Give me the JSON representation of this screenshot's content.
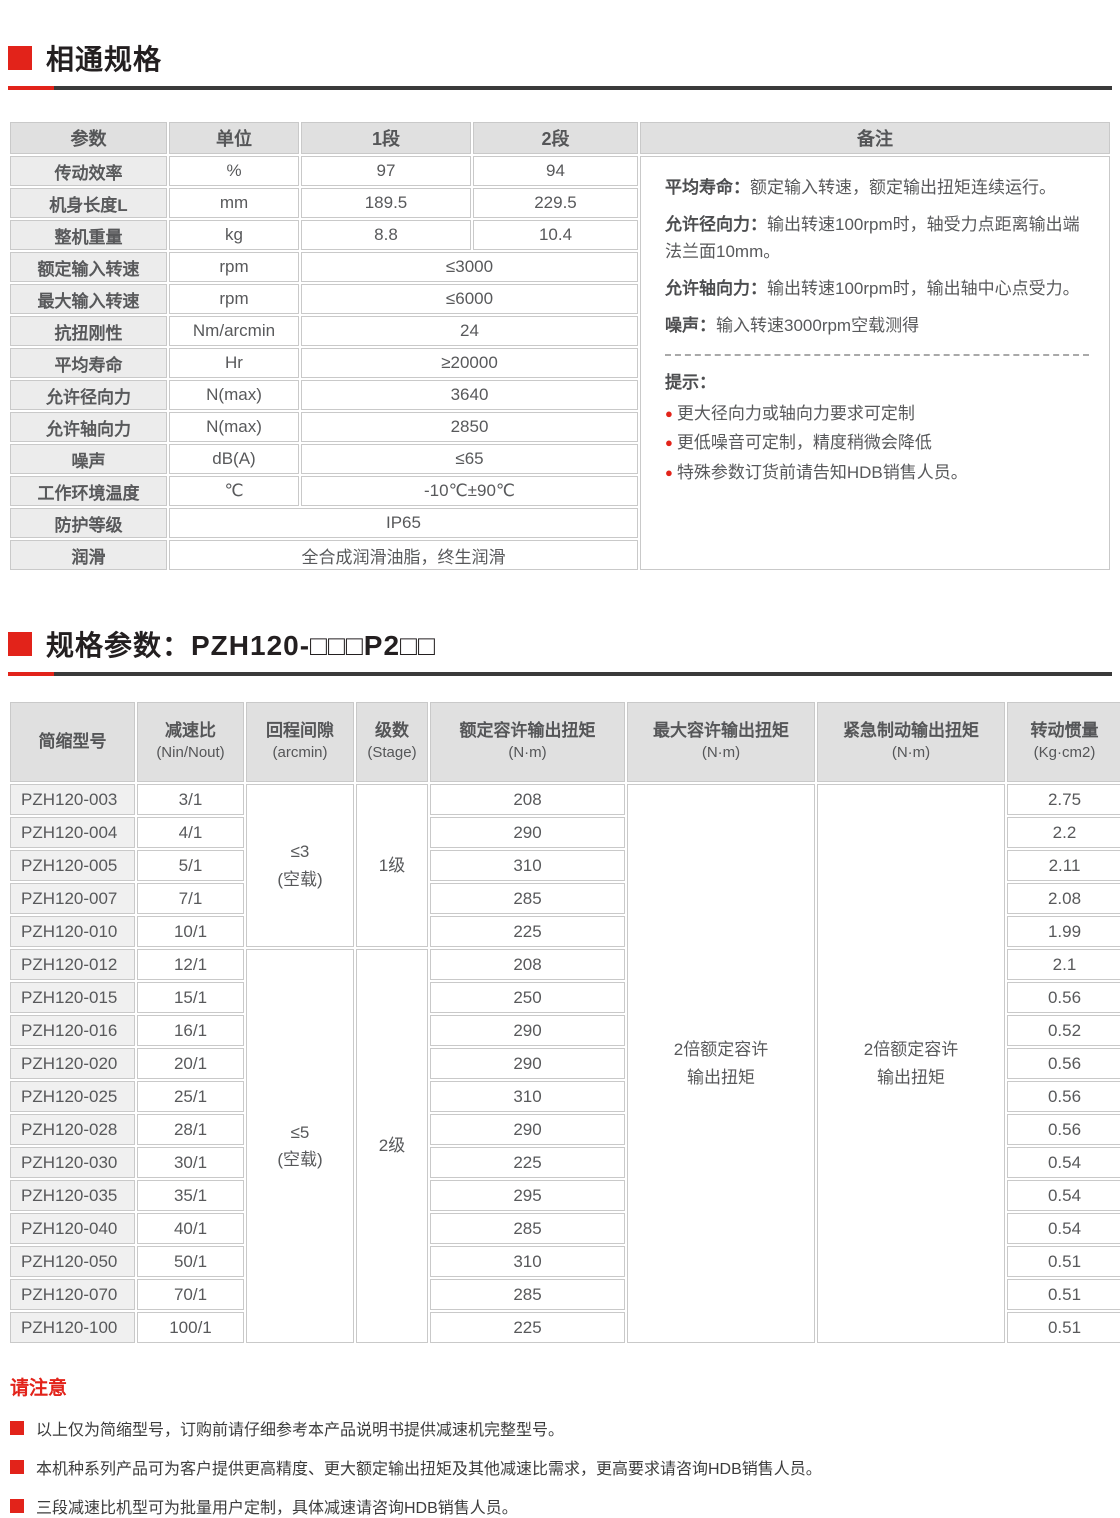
{
  "accent_color": "#e2231a",
  "section1": {
    "title": "相通规格",
    "table": {
      "headers": {
        "param": "参数",
        "unit": "单位",
        "col1": "1段",
        "col2": "2段",
        "remarks": "备注"
      },
      "rows": [
        {
          "param": "传动效率",
          "unit": "%",
          "v1": "97",
          "v2": "94"
        },
        {
          "param": "机身长度L",
          "unit": "mm",
          "v1": "189.5",
          "v2": "229.5"
        },
        {
          "param": "整机重量",
          "unit": "kg",
          "v1": "8.8",
          "v2": "10.4"
        },
        {
          "param": "额定输入转速",
          "unit": "rpm",
          "span": "≤3000"
        },
        {
          "param": "最大输入转速",
          "unit": "rpm",
          "span": "≤6000"
        },
        {
          "param": "抗扭刚性",
          "unit": "Nm/arcmin",
          "span": "24"
        },
        {
          "param": "平均寿命",
          "unit": "Hr",
          "span": "≥20000"
        },
        {
          "param": "允许径向力",
          "unit": "N(max)",
          "span": "3640"
        },
        {
          "param": "允许轴向力",
          "unit": "N(max)",
          "span": "2850"
        },
        {
          "param": "噪声",
          "unit": "dB(A)",
          "span": "≤65"
        },
        {
          "param": "工作环境温度",
          "unit": "℃",
          "span": "-10℃±90℃"
        },
        {
          "param": "防护等级",
          "full": "IP65"
        },
        {
          "param": "润滑",
          "full": "全合成润滑油脂，终生润滑"
        }
      ],
      "remarks": {
        "paragraphs": [
          {
            "label": "平均寿命：",
            "text": "额定输入转速，额定输出扭矩连续运行。"
          },
          {
            "label": "允许径向力：",
            "text": "输出转速100rpm时，轴受力点距离输出端法兰面10mm。"
          },
          {
            "label": "允许轴向力：",
            "text": "输出转速100rpm时，输出轴中心点受力。"
          },
          {
            "label": "噪声：",
            "text": "输入转速3000rpm空载测得"
          }
        ],
        "tips_title": "提示：",
        "tips": [
          "更大径向力或轴向力要求可定制",
          "更低噪音可定制，精度稍微会降低",
          "特殊参数订货前请告知HDB销售人员。"
        ]
      }
    }
  },
  "section2": {
    "title": "规格参数：PZH120-□□□P2□□",
    "table": {
      "columns": [
        {
          "label": "简缩型号",
          "unit": ""
        },
        {
          "label": "减速比",
          "unit": "(Nin/Nout)"
        },
        {
          "label": "回程间隙",
          "unit": "(arcmin)"
        },
        {
          "label": "级数",
          "unit": "(Stage)"
        },
        {
          "label": "额定容许输出扭矩",
          "unit": "(N·m)"
        },
        {
          "label": "最大容许输出扭矩",
          "unit": "(N·m)"
        },
        {
          "label": "紧急制动输出扭矩",
          "unit": "(N·m)"
        },
        {
          "label": "转动惯量",
          "unit": "(Kg·cm2)"
        }
      ],
      "max_torque_lines": [
        "2倍额定容许",
        "输出扭矩"
      ],
      "brake_torque_lines": [
        "2倍额定容许",
        "输出扭矩"
      ],
      "groups": [
        {
          "backlash_lines": [
            "≤3",
            "(空载)"
          ],
          "stage": "1级",
          "rows": [
            {
              "model": "PZH120-003",
              "ratio": "3/1",
              "torque": "208",
              "inertia": "2.75"
            },
            {
              "model": "PZH120-004",
              "ratio": "4/1",
              "torque": "290",
              "inertia": "2.2"
            },
            {
              "model": "PZH120-005",
              "ratio": "5/1",
              "torque": "310",
              "inertia": "2.11"
            },
            {
              "model": "PZH120-007",
              "ratio": "7/1",
              "torque": "285",
              "inertia": "2.08"
            },
            {
              "model": "PZH120-010",
              "ratio": "10/1",
              "torque": "225",
              "inertia": "1.99"
            }
          ]
        },
        {
          "backlash_lines": [
            "≤5",
            "(空载)"
          ],
          "stage": "2级",
          "rows": [
            {
              "model": "PZH120-012",
              "ratio": "12/1",
              "torque": "208",
              "inertia": "2.1"
            },
            {
              "model": "PZH120-015",
              "ratio": "15/1",
              "torque": "250",
              "inertia": "0.56"
            },
            {
              "model": "PZH120-016",
              "ratio": "16/1",
              "torque": "290",
              "inertia": "0.52"
            },
            {
              "model": "PZH120-020",
              "ratio": "20/1",
              "torque": "290",
              "inertia": "0.56"
            },
            {
              "model": "PZH120-025",
              "ratio": "25/1",
              "torque": "310",
              "inertia": "0.56"
            },
            {
              "model": "PZH120-028",
              "ratio": "28/1",
              "torque": "290",
              "inertia": "0.56"
            },
            {
              "model": "PZH120-030",
              "ratio": "30/1",
              "torque": "225",
              "inertia": "0.54"
            },
            {
              "model": "PZH120-035",
              "ratio": "35/1",
              "torque": "295",
              "inertia": "0.54"
            },
            {
              "model": "PZH120-040",
              "ratio": "40/1",
              "torque": "285",
              "inertia": "0.54"
            },
            {
              "model": "PZH120-050",
              "ratio": "50/1",
              "torque": "310",
              "inertia": "0.51"
            },
            {
              "model": "PZH120-070",
              "ratio": "70/1",
              "torque": "285",
              "inertia": "0.51"
            },
            {
              "model": "PZH120-100",
              "ratio": "100/1",
              "torque": "225",
              "inertia": "0.51"
            }
          ]
        }
      ]
    }
  },
  "notice": {
    "title": "请注意",
    "items": [
      "以上仅为简缩型号，订购前请仔细参考本产品说明书提供减速机完整型号。",
      "本机种系列产品可为客户提供更高精度、更大额定输出扭矩及其他减速比需求，更高要求请咨询HDB销售人员。",
      "三段减速比机型可为批量用户定制，具体减速请咨询HDB销售人员。"
    ]
  }
}
